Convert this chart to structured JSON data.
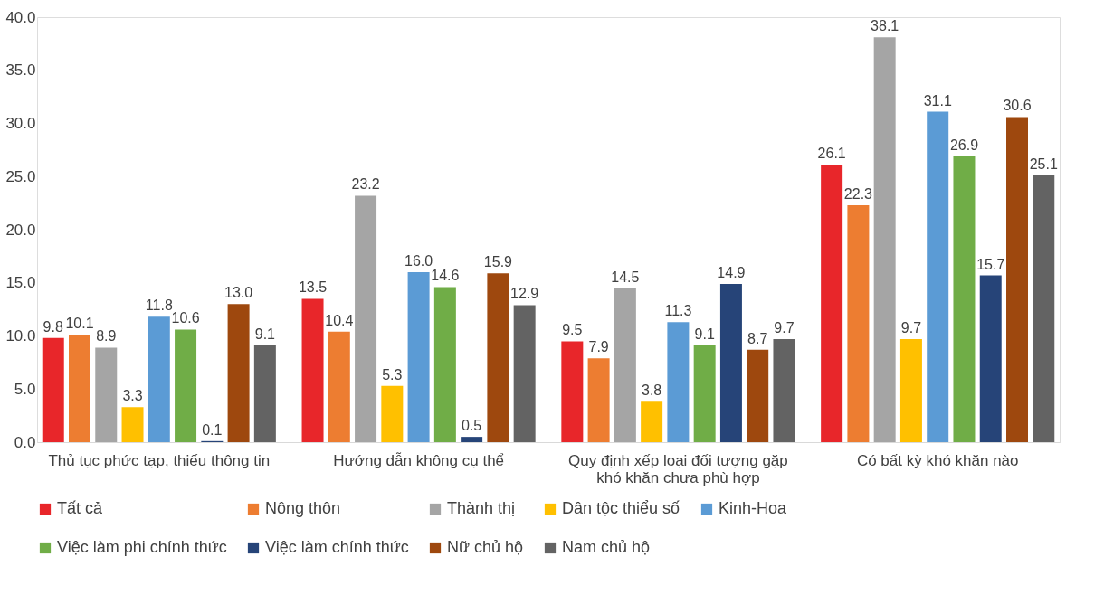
{
  "chart_data": {
    "type": "bar",
    "categories": [
      "Thủ tục phức tạp, thiếu thông tin",
      "Hướng dẫn không cụ thể",
      "Quy định xếp loại đối tượng gặp khó khăn chưa phù hợp",
      "Có bất kỳ khó khăn nào"
    ],
    "series": [
      {
        "name": "Tất cả",
        "color": "#e8262a",
        "values": [
          9.8,
          13.5,
          9.5,
          26.1
        ],
        "value_labels": [
          "9.8",
          "13.5",
          "9.5",
          "26.1"
        ]
      },
      {
        "name": "Nông thôn",
        "color": "#ed7d31",
        "values": [
          10.1,
          10.4,
          7.9,
          22.3
        ],
        "value_labels": [
          "10.1",
          "10.4",
          "7.9",
          "22.3"
        ]
      },
      {
        "name": "Thành thị",
        "color": "#a5a5a5",
        "values": [
          8.9,
          23.2,
          14.5,
          38.1
        ],
        "value_labels": [
          "8.9",
          "23.2",
          "14.5",
          "38.1"
        ]
      },
      {
        "name": "Dân tộc thiểu số",
        "color": "#ffc000",
        "values": [
          3.3,
          5.3,
          3.8,
          9.7
        ],
        "value_labels": [
          "3.3",
          "5.3",
          "3.8",
          "9.7"
        ]
      },
      {
        "name": "Kinh-Hoa",
        "color": "#5b9bd5",
        "values": [
          11.8,
          16,
          11.3,
          31.1
        ],
        "value_labels": [
          "11.8",
          "16.0",
          "11.3",
          "31.1"
        ]
      },
      {
        "name": "Việc làm phi chính thức",
        "color": "#70ad47",
        "values": [
          10.6,
          14.6,
          9.1,
          26.9
        ],
        "value_labels": [
          "10.6",
          "14.6",
          "9.1",
          "26.9"
        ]
      },
      {
        "name": "Việc làm chính thức",
        "color": "#264478",
        "values": [
          0.1,
          0.5,
          14.9,
          15.7
        ],
        "value_labels": [
          "0.1",
          "0.5",
          "14.9",
          "15.7"
        ]
      },
      {
        "name": "Nữ chủ hộ",
        "color": "#9e480e",
        "values": [
          13,
          15.9,
          8.7,
          30.6
        ],
        "value_labels": [
          "13.0",
          "15.9",
          "8.7",
          "30.6"
        ]
      },
      {
        "name": "Nam chủ hộ",
        "color": "#636363",
        "values": [
          9.1,
          12.9,
          9.7,
          25.1
        ],
        "value_labels": [
          "9.1",
          "12.9",
          "9.7",
          "25.1"
        ]
      }
    ],
    "ylim": [
      0,
      40
    ],
    "yticks": [
      {
        "value": 0,
        "label": "0.0"
      },
      {
        "value": 5,
        "label": "5.0"
      },
      {
        "value": 10,
        "label": "10.0"
      },
      {
        "value": 15,
        "label": "15.0"
      },
      {
        "value": 20,
        "label": "20.0"
      },
      {
        "value": 25,
        "label": "25.0"
      },
      {
        "value": 30,
        "label": "30.0"
      },
      {
        "value": 35,
        "label": "35.0"
      },
      {
        "value": 40,
        "label": "40.0"
      }
    ],
    "grid": false,
    "legend": "bottom"
  }
}
